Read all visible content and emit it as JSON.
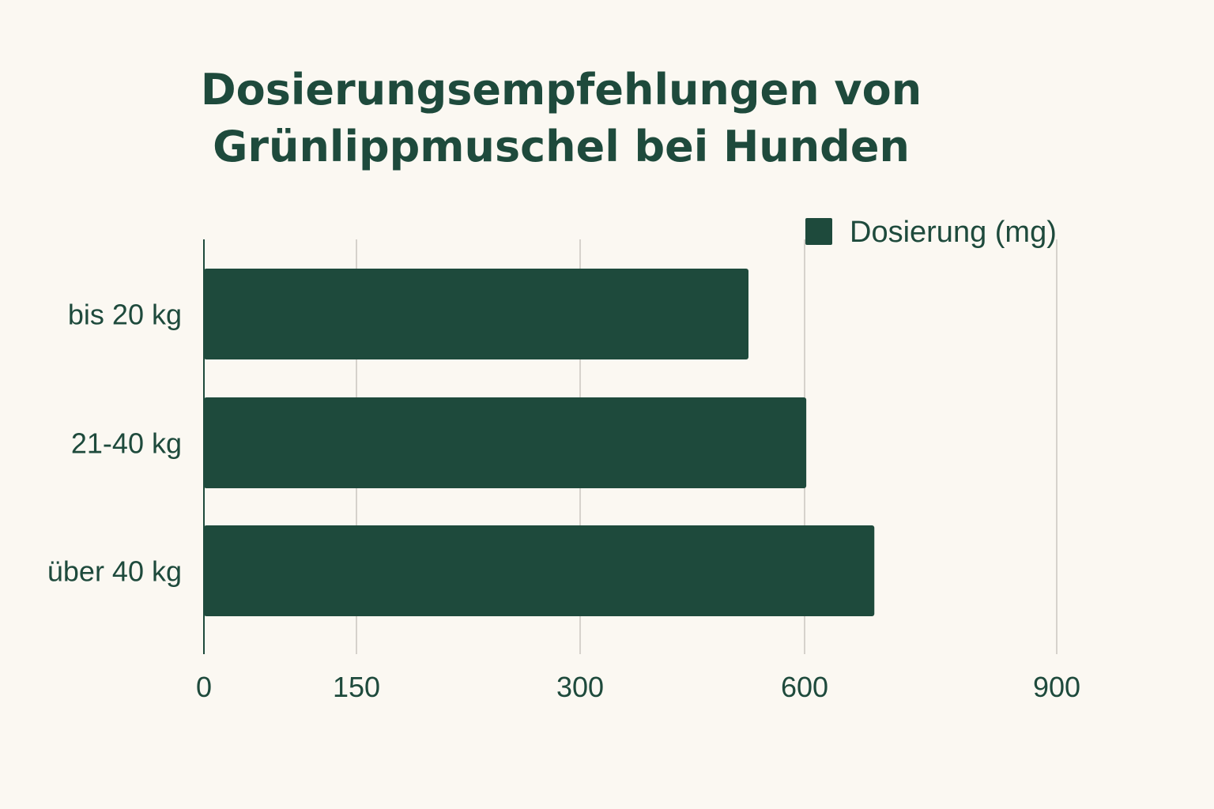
{
  "chart_data": {
    "type": "bar",
    "orientation": "horizontal",
    "title_lines": [
      "Dosierungsempfehlungen von",
      "Grünlippmuschel bei Hunden"
    ],
    "categories": [
      "bis 20 kg",
      "21-40 kg",
      "über 40 kg"
    ],
    "series": [
      {
        "name": "Dosierung (mg)",
        "values": [
          525,
          602,
          683
        ],
        "color": "#1e4a3c"
      }
    ],
    "x_ticks": [
      0,
      150,
      300,
      600,
      900
    ],
    "x_tick_labels": [
      "0",
      "150",
      "300",
      "600",
      "900"
    ],
    "xlabel": "",
    "ylabel": "",
    "grid": true,
    "legend_position": "top-right",
    "colors": {
      "bar": "#1e4a3c",
      "text": "#1e4a3c",
      "grid": "#c9c6bf",
      "axis": "#1e4a3c",
      "background": "#fbf8f2"
    }
  }
}
